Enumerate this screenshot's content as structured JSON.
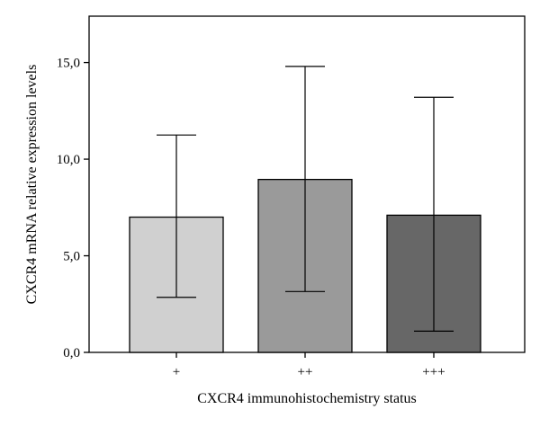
{
  "chart_data": {
    "type": "bar",
    "title": "",
    "xlabel": "CXCR4 immunohistochemistry status",
    "ylabel": "CXCR4 mRNA relative expression levels",
    "categories": [
      "+",
      "++",
      "+++"
    ],
    "values": [
      7.0,
      8.95,
      7.1
    ],
    "error_low": [
      2.85,
      3.15,
      1.1
    ],
    "error_high": [
      11.25,
      14.8,
      13.2
    ],
    "bar_colors": [
      "#d0d0d0",
      "#9a9a9a",
      "#676767"
    ],
    "ylim": [
      0,
      17.4
    ],
    "yticks": [
      0,
      5,
      10,
      15
    ],
    "ytick_labels": [
      "0,0",
      "5,0",
      "10,0",
      "15,0"
    ],
    "grid": false,
    "legend": "none"
  }
}
